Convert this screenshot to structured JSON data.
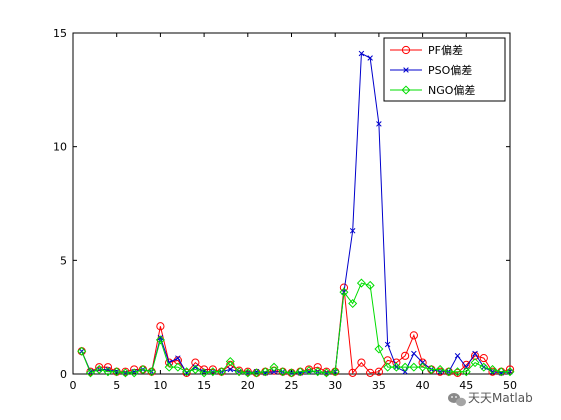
{
  "chart_data": {
    "type": "line",
    "title": "",
    "xlabel": "",
    "ylabel": "",
    "xlim": [
      0,
      50
    ],
    "ylim": [
      0,
      15
    ],
    "xticks": [
      0,
      5,
      10,
      15,
      20,
      25,
      30,
      35,
      40,
      45,
      50
    ],
    "yticks": [
      0,
      5,
      10,
      15
    ],
    "grid": false,
    "legend_position": "top-right",
    "x": [
      1,
      2,
      3,
      4,
      5,
      6,
      7,
      8,
      9,
      10,
      11,
      12,
      13,
      14,
      15,
      16,
      17,
      18,
      19,
      20,
      21,
      22,
      23,
      24,
      25,
      26,
      27,
      28,
      29,
      30,
      31,
      32,
      33,
      34,
      35,
      36,
      37,
      38,
      39,
      40,
      41,
      42,
      43,
      44,
      45,
      46,
      47,
      48,
      49,
      50
    ],
    "series": [
      {
        "name": "PF偏差",
        "color": "#ff0000",
        "marker": "circle",
        "values": [
          1.0,
          0.1,
          0.3,
          0.3,
          0.1,
          0.1,
          0.2,
          0.2,
          0.1,
          2.1,
          0.5,
          0.6,
          0.05,
          0.5,
          0.2,
          0.2,
          0.1,
          0.4,
          0.15,
          0.1,
          0.05,
          0.1,
          0.15,
          0.1,
          0.05,
          0.1,
          0.2,
          0.3,
          0.1,
          0.1,
          3.8,
          0.05,
          0.5,
          0.05,
          0.1,
          0.6,
          0.5,
          0.8,
          1.7,
          0.5,
          0.2,
          0.1,
          0.1,
          0.05,
          0.4,
          0.8,
          0.7,
          0.1,
          0.1,
          0.2
        ]
      },
      {
        "name": "PSO偏差",
        "color": "#0000cc",
        "marker": "x",
        "values": [
          1.0,
          0.1,
          0.2,
          0.2,
          0.1,
          0.05,
          0.1,
          0.2,
          0.1,
          1.6,
          0.5,
          0.7,
          0.05,
          0.3,
          0.1,
          0.1,
          0.1,
          0.2,
          0.1,
          0.05,
          0.1,
          0.05,
          0.1,
          0.1,
          0.05,
          0.05,
          0.1,
          0.1,
          0.05,
          0.1,
          3.6,
          6.3,
          14.1,
          13.9,
          11.0,
          1.3,
          0.3,
          0.1,
          0.9,
          0.5,
          0.2,
          0.1,
          0.1,
          0.8,
          0.3,
          0.9,
          0.3,
          0.1,
          0.05,
          0.1
        ]
      },
      {
        "name": "NGO偏差",
        "color": "#00dd00",
        "marker": "diamond",
        "values": [
          1.0,
          0.05,
          0.2,
          0.1,
          0.1,
          0.05,
          0.05,
          0.2,
          0.1,
          1.5,
          0.3,
          0.3,
          0.1,
          0.2,
          0.05,
          0.1,
          0.1,
          0.55,
          0.1,
          0.05,
          0.05,
          0.1,
          0.3,
          0.1,
          0.05,
          0.1,
          0.15,
          0.1,
          0.05,
          0.1,
          3.6,
          3.1,
          4.0,
          3.9,
          1.1,
          0.3,
          0.3,
          0.3,
          0.3,
          0.3,
          0.2,
          0.2,
          0.1,
          0.1,
          0.1,
          0.5,
          0.3,
          0.2,
          0.1,
          0.1
        ]
      }
    ]
  },
  "watermark": {
    "text": "天天Matlab",
    "icon": "wechat-icon"
  }
}
